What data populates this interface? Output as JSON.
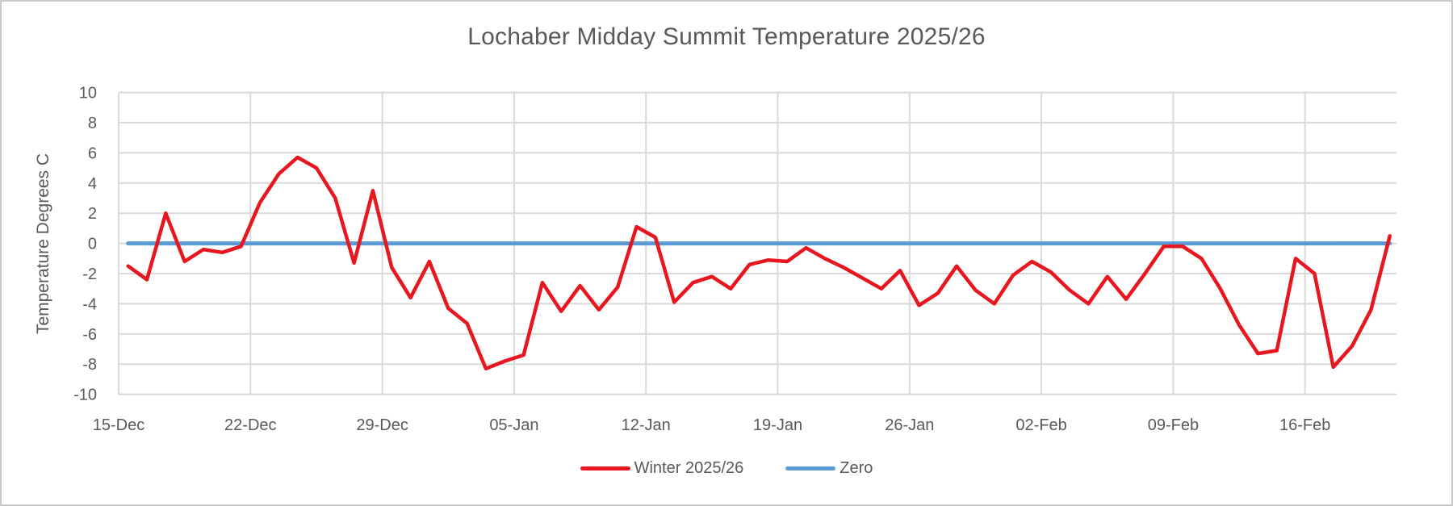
{
  "frame": {
    "background": "#FFFFFF",
    "border_color": "#C9C9C9"
  },
  "chart_data": {
    "type": "line",
    "title": "Lochaber Midday Summit Temperature 2025/26",
    "ylabel": "Temperature Degrees C",
    "xlabel": "",
    "ylim": [
      -10,
      10
    ],
    "y_tick_step": 2,
    "y_tick_labels": [
      "10",
      "8",
      "6",
      "4",
      "2",
      "0",
      "-2",
      "-4",
      "-6",
      "-8",
      "-10"
    ],
    "x_tick_labels": [
      "15-Dec",
      "22-Dec",
      "29-Dec",
      "05-Jan",
      "12-Jan",
      "19-Jan",
      "26-Jan",
      "02-Feb",
      "09-Feb",
      "16-Feb"
    ],
    "grid": true,
    "legend_position": "bottom",
    "title_color": "#595959",
    "axis_text_color": "#595959",
    "grid_color": "#D9D9D9",
    "x": [
      "15-Dec",
      "16-Dec",
      "17-Dec",
      "18-Dec",
      "19-Dec",
      "20-Dec",
      "21-Dec",
      "22-Dec",
      "23-Dec",
      "24-Dec",
      "25-Dec",
      "26-Dec",
      "27-Dec",
      "28-Dec",
      "29-Dec",
      "30-Dec",
      "31-Dec",
      "01-Jan",
      "02-Jan",
      "03-Jan",
      "04-Jan",
      "05-Jan",
      "06-Jan",
      "07-Jan",
      "08-Jan",
      "09-Jan",
      "10-Jan",
      "11-Jan",
      "12-Jan",
      "13-Jan",
      "14-Jan",
      "15-Jan",
      "16-Jan",
      "17-Jan",
      "18-Jan",
      "19-Jan",
      "20-Jan",
      "21-Jan",
      "22-Jan",
      "23-Jan",
      "24-Jan",
      "25-Jan",
      "26-Jan",
      "27-Jan",
      "28-Jan",
      "29-Jan",
      "30-Jan",
      "31-Jan",
      "01-Feb",
      "02-Feb",
      "03-Feb",
      "04-Feb",
      "05-Feb",
      "06-Feb",
      "07-Feb",
      "08-Feb",
      "09-Feb",
      "10-Feb",
      "11-Feb",
      "12-Feb",
      "13-Feb",
      "14-Feb",
      "15-Feb",
      "16-Feb",
      "17-Feb",
      "18-Feb",
      "19-Feb",
      "20-Feb"
    ],
    "series": [
      {
        "name": "Winter 2025/26",
        "color": "#E8171F",
        "values": [
          -1.5,
          -2.4,
          2.0,
          -1.2,
          -0.4,
          -0.6,
          -0.2,
          2.7,
          4.6,
          5.7,
          5.0,
          3.0,
          -1.3,
          3.5,
          -1.6,
          -3.6,
          -1.2,
          -4.3,
          -5.3,
          -8.3,
          -7.8,
          -7.4,
          -2.6,
          -4.5,
          -2.8,
          -4.4,
          -2.9,
          1.1,
          0.4,
          -3.9,
          -2.6,
          -2.2,
          -3.0,
          -1.4,
          -1.1,
          -1.2,
          -0.3,
          -1.0,
          -1.6,
          -2.3,
          -3.0,
          -1.8,
          -4.1,
          -3.3,
          -1.5,
          -3.1,
          -4.0,
          -2.1,
          -1.2,
          -1.9,
          -3.1,
          -4.0,
          -2.2,
          -3.7,
          -2.0,
          -0.2,
          -0.2,
          -1.0,
          -3.0,
          -5.4,
          -7.3,
          -7.1,
          -1.0,
          -2.0,
          -8.2,
          -6.8,
          -4.4,
          0.5
        ]
      },
      {
        "name": "Zero",
        "color": "#5B9BD5",
        "constant_value": 0
      }
    ]
  }
}
